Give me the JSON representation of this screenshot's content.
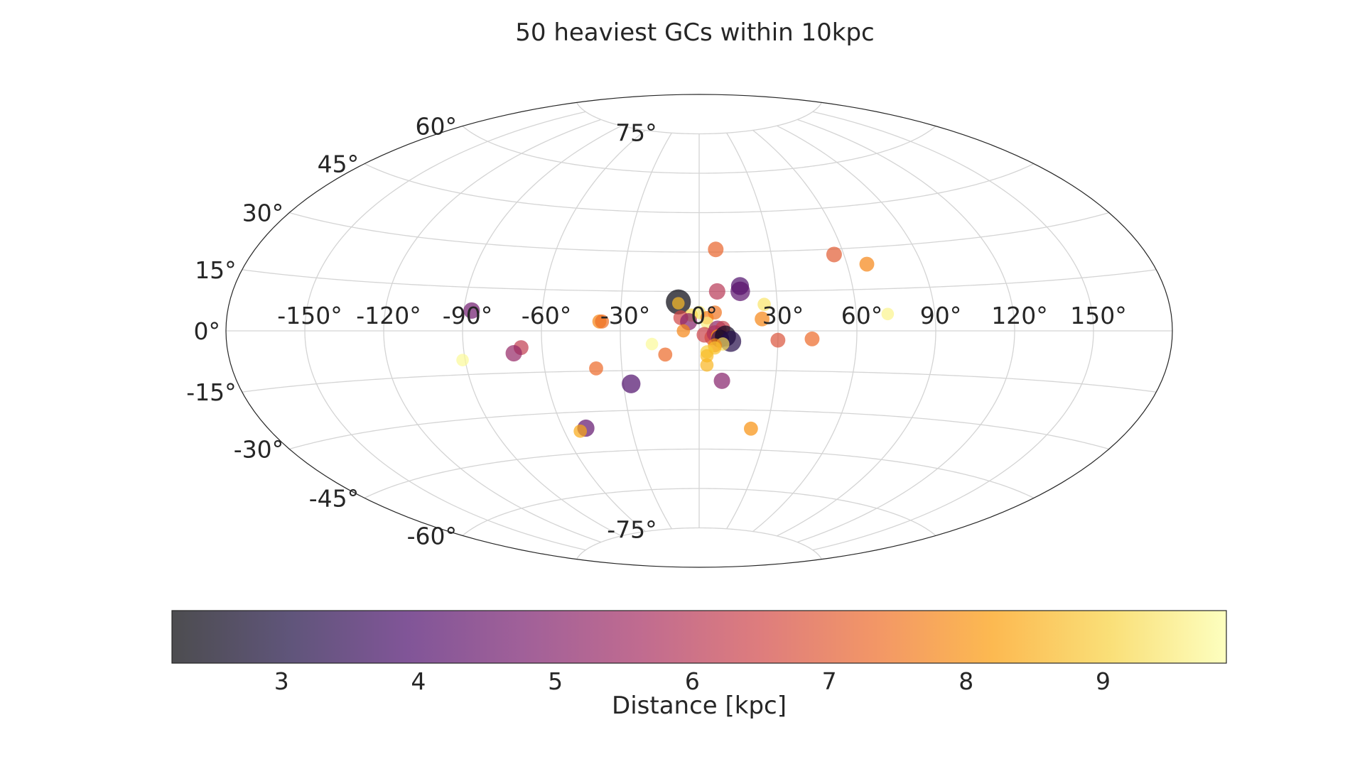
{
  "chart_data": {
    "type": "scatter",
    "projection": "aitoff",
    "title": "50 heaviest GCs within 10kpc",
    "grid": true,
    "lon_range": [
      -180,
      180
    ],
    "lat_range": [
      -90,
      90
    ],
    "x_ticks": [
      -150,
      -120,
      -90,
      -60,
      -30,
      0,
      30,
      60,
      90,
      120,
      150
    ],
    "x_tick_labels": [
      "-150°",
      "-120°",
      "-90°",
      "-60°",
      "-30°",
      "0°",
      "30°",
      "60°",
      "90°",
      "120°",
      "150°"
    ],
    "y_ticks": [
      75,
      60,
      45,
      30,
      15,
      0,
      -15,
      -30,
      -45,
      -60,
      -75
    ],
    "y_tick_labels": [
      "75°",
      "60°",
      "45°",
      "30°",
      "15°",
      "0°",
      "-15°",
      "-30°",
      "-45°",
      "-60°",
      "-75°"
    ],
    "colorbar": {
      "label": "Distance [kpc]",
      "range": [
        2.2,
        9.9
      ],
      "ticks": [
        3,
        4,
        5,
        6,
        7,
        8,
        9
      ],
      "tick_labels": [
        "3",
        "4",
        "5",
        "6",
        "7",
        "8",
        "9"
      ],
      "colormap": "inferno",
      "alpha": 0.7,
      "orientation": "horizontal",
      "placement": "bottom"
    },
    "points": [
      {
        "lon": 7,
        "lat": 31,
        "dist": 7.2,
        "size": 1.0
      },
      {
        "lon": 56,
        "lat": 28,
        "dist": 7.0,
        "size": 1.0
      },
      {
        "lon": 68,
        "lat": 24,
        "dist": 7.8,
        "size": 0.95
      },
      {
        "lon": 16,
        "lat": 17,
        "dist": 4.0,
        "size": 1.15
      },
      {
        "lon": 16,
        "lat": 15,
        "dist": 4.2,
        "size": 1.25
      },
      {
        "lon": 7,
        "lat": 15,
        "dist": 6.0,
        "size": 1.05
      },
      {
        "lon": -8,
        "lat": 11,
        "dist": 2.3,
        "size": 1.6
      },
      {
        "lon": -8,
        "lat": 10.5,
        "dist": 8.7,
        "size": 0.8
      },
      {
        "lon": 25,
        "lat": 10,
        "dist": 9.4,
        "size": 0.85
      },
      {
        "lon": 6,
        "lat": 7,
        "dist": 7.5,
        "size": 0.9
      },
      {
        "lon": 0,
        "lat": 7,
        "dist": 9.5,
        "size": 0.85
      },
      {
        "lon": -3,
        "lat": 6,
        "dist": 9.2,
        "size": 0.85
      },
      {
        "lon": 3,
        "lat": 5,
        "dist": 7.7,
        "size": 0.85
      },
      {
        "lon": -7,
        "lat": 5,
        "dist": 6.5,
        "size": 0.95
      },
      {
        "lon": 24,
        "lat": 4.5,
        "dist": 7.8,
        "size": 0.95
      },
      {
        "lon": -4,
        "lat": 3.5,
        "dist": 5.0,
        "size": 1.1
      },
      {
        "lon": 3,
        "lat": 3,
        "dist": 9.6,
        "size": 0.8
      },
      {
        "lon": 72,
        "lat": 6,
        "dist": 9.7,
        "size": 0.8
      },
      {
        "lon": -87,
        "lat": 7,
        "dist": 4.6,
        "size": 1.05
      },
      {
        "lon": -38,
        "lat": 3.5,
        "dist": 7.8,
        "size": 0.9
      },
      {
        "lon": -37,
        "lat": 3.5,
        "dist": 7.4,
        "size": 0.9
      },
      {
        "lon": 7,
        "lat": 0.5,
        "dist": 5.1,
        "size": 1.15
      },
      {
        "lon": 9,
        "lat": 1,
        "dist": 6.3,
        "size": 0.95
      },
      {
        "lon": -6,
        "lat": 0,
        "dist": 7.8,
        "size": 0.85
      },
      {
        "lon": 2,
        "lat": -1.5,
        "dist": 6.4,
        "size": 1.0
      },
      {
        "lon": 5,
        "lat": -2.5,
        "dist": 6.6,
        "size": 1.0
      },
      {
        "lon": 6,
        "lat": -1,
        "dist": 5.8,
        "size": 1.05
      },
      {
        "lon": 7,
        "lat": -2,
        "dist": 8.2,
        "size": 0.85
      },
      {
        "lon": 8,
        "lat": -3,
        "dist": 3.6,
        "size": 1.15
      },
      {
        "lon": 10,
        "lat": -2,
        "dist": 2.6,
        "size": 1.35
      },
      {
        "lon": 12,
        "lat": -4,
        "dist": 3.2,
        "size": 1.35
      },
      {
        "lon": 9,
        "lat": -5,
        "dist": 9.3,
        "size": 0.85
      },
      {
        "lon": 30,
        "lat": -3.5,
        "dist": 6.8,
        "size": 0.95
      },
      {
        "lon": 43,
        "lat": -3,
        "dist": 7.3,
        "size": 0.95
      },
      {
        "lon": 6,
        "lat": -5.5,
        "dist": 7.8,
        "size": 0.9
      },
      {
        "lon": 6,
        "lat": -6.5,
        "dist": 8.8,
        "size": 0.85
      },
      {
        "lon": 3,
        "lat": -8,
        "dist": 9.0,
        "size": 0.85
      },
      {
        "lon": -18,
        "lat": -5,
        "dist": 9.8,
        "size": 0.8
      },
      {
        "lon": -13,
        "lat": -9,
        "dist": 7.3,
        "size": 0.9
      },
      {
        "lon": 3,
        "lat": -9.5,
        "dist": 8.7,
        "size": 0.85
      },
      {
        "lon": -68,
        "lat": -6,
        "dist": 6.2,
        "size": 0.95
      },
      {
        "lon": -71,
        "lat": -8,
        "dist": 5.3,
        "size": 1.05
      },
      {
        "lon": -91,
        "lat": -10,
        "dist": 9.8,
        "size": 0.8
      },
      {
        "lon": -40,
        "lat": -14,
        "dist": 7.3,
        "size": 0.9
      },
      {
        "lon": -27,
        "lat": -20,
        "dist": 4.0,
        "size": 1.2
      },
      {
        "lon": 9,
        "lat": -19,
        "dist": 5.0,
        "size": 1.05
      },
      {
        "lon": -50,
        "lat": -36,
        "dist": 4.3,
        "size": 1.1
      },
      {
        "lon": -53,
        "lat": -37,
        "dist": 8.4,
        "size": 0.85
      },
      {
        "lon": 23,
        "lat": -37,
        "dist": 8.0,
        "size": 0.9
      },
      {
        "lon": 3,
        "lat": -13,
        "dist": 8.6,
        "size": 0.85
      }
    ]
  },
  "colormap_stops": [
    "#000004",
    "#1b0c41",
    "#4a0c6b",
    "#781c6d",
    "#a52c60",
    "#cf4446",
    "#ed6925",
    "#fb9b06",
    "#f7d13d",
    "#fcffa4"
  ]
}
